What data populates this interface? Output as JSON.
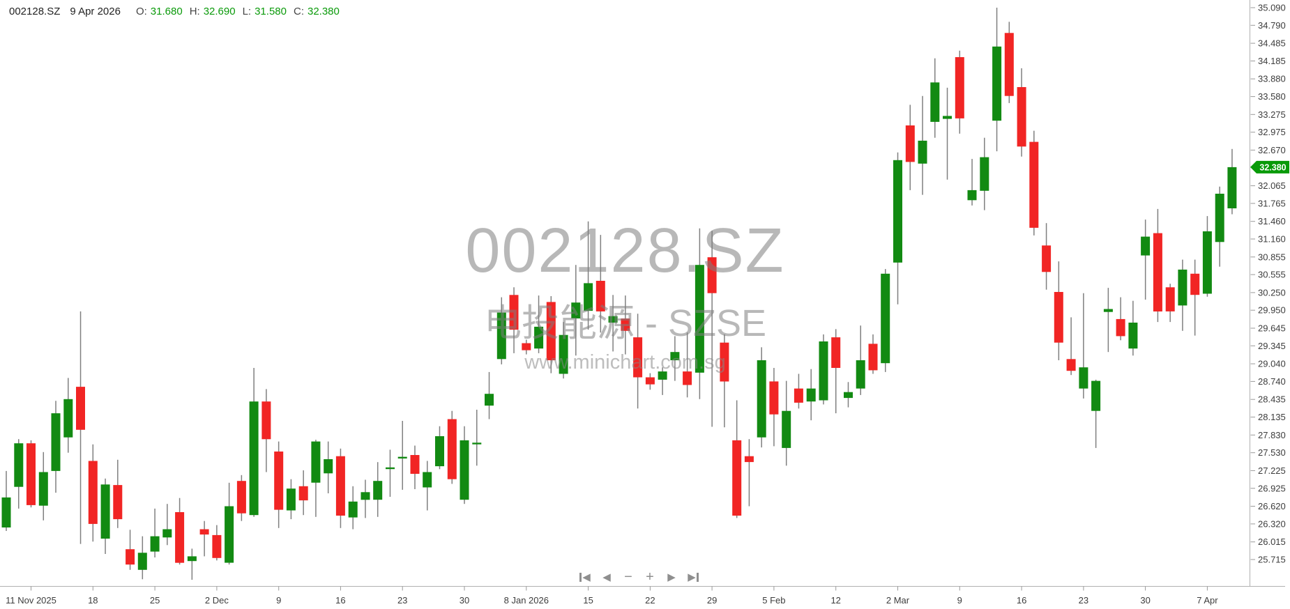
{
  "header": {
    "symbol": "002128.SZ",
    "date": "9 Apr 2026",
    "o_label": "O:",
    "open": "31.680",
    "h_label": "H:",
    "high": "32.690",
    "l_label": "L:",
    "low": "31.580",
    "c_label": "C:",
    "close": "32.380"
  },
  "watermark": {
    "line1": "002128.SZ",
    "line2": "电投能源 - SZSE",
    "line3": "www.minichart.com.sg"
  },
  "nav": {
    "skip_start_glyph": "◀",
    "prev_glyph": "◀",
    "zoom_out_glyph": "−",
    "zoom_in_glyph": "+",
    "next_glyph": "▶",
    "skip_end_glyph": "▶"
  },
  "colors": {
    "up": "#128a12",
    "down": "#f12524",
    "wick": "#7f7f7f",
    "axis_line": "#b0b0b0",
    "tick_mark": "#999999",
    "tick_text": "#3c3c3c",
    "tag_bg": "#089a08",
    "tag_text": "#ffffff"
  },
  "chart_data": {
    "type": "candlestick",
    "symbol": "002128.SZ",
    "company": "电投能源",
    "exchange": "SZSE",
    "title": "002128.SZ daily candlestick chart",
    "grid": false,
    "legend": "none",
    "y_axis_side": "right",
    "y_axis_labels": [
      "35.090",
      "34.790",
      "34.485",
      "34.185",
      "33.880",
      "33.580",
      "33.275",
      "32.975",
      "32.670",
      "32.065",
      "31.765",
      "31.460",
      "31.160",
      "30.855",
      "30.555",
      "30.250",
      "29.950",
      "29.645",
      "29.345",
      "29.040",
      "28.740",
      "28.435",
      "28.135",
      "27.830",
      "27.530",
      "27.225",
      "26.925",
      "26.620",
      "26.320",
      "26.015",
      "25.715"
    ],
    "last_price_label": "32.380",
    "last_price": 32.38,
    "last_bar": {
      "date": "9 Apr 2026",
      "open": 31.68,
      "high": 32.69,
      "low": 31.58,
      "close": 32.38
    },
    "x_tick_labels": [
      "11 Nov 2025",
      "18",
      "25",
      "2 Dec",
      "9",
      "16",
      "23",
      "30",
      "8 Jan 2026",
      "15",
      "22",
      "29",
      "5 Feb",
      "12",
      "2 Mar",
      "9",
      "16",
      "23",
      "30",
      "7 Apr"
    ],
    "x_tick_candle_indices": [
      2,
      7,
      12,
      17,
      22,
      27,
      32,
      37,
      42,
      47,
      52,
      57,
      62,
      67,
      72,
      77,
      82,
      87,
      92,
      97
    ],
    "y_range_visible": [
      25.35,
      35.2
    ],
    "ohlc": [
      [
        26.26,
        27.22,
        26.2,
        26.77
      ],
      [
        26.95,
        27.76,
        26.58,
        27.69
      ],
      [
        27.69,
        27.74,
        26.6,
        26.64
      ],
      [
        26.63,
        27.54,
        26.38,
        27.2
      ],
      [
        27.22,
        28.41,
        26.85,
        28.2
      ],
      [
        27.79,
        28.8,
        27.53,
        28.44
      ],
      [
        28.65,
        29.93,
        25.98,
        27.92
      ],
      [
        27.39,
        27.67,
        26.02,
        26.32
      ],
      [
        26.07,
        27.09,
        25.81,
        26.99
      ],
      [
        26.98,
        27.41,
        26.25,
        26.4
      ],
      [
        25.89,
        26.22,
        25.54,
        25.63
      ],
      [
        25.54,
        26.11,
        25.38,
        25.83
      ],
      [
        25.85,
        26.58,
        25.75,
        26.11
      ],
      [
        26.09,
        26.66,
        25.96,
        26.23
      ],
      [
        26.52,
        26.76,
        25.63,
        25.66
      ],
      [
        25.69,
        25.9,
        25.37,
        25.77
      ],
      [
        26.23,
        26.37,
        25.77,
        26.14
      ],
      [
        26.13,
        26.3,
        25.7,
        25.74
      ],
      [
        25.66,
        27.02,
        25.63,
        26.62
      ],
      [
        27.05,
        27.15,
        26.37,
        26.5
      ],
      [
        26.47,
        28.97,
        26.44,
        28.4
      ],
      [
        28.4,
        28.61,
        27.2,
        27.76
      ],
      [
        27.55,
        27.72,
        26.25,
        26.56
      ],
      [
        26.55,
        27.08,
        26.4,
        26.92
      ],
      [
        26.96,
        27.23,
        26.47,
        26.72
      ],
      [
        27.02,
        27.75,
        26.44,
        27.72
      ],
      [
        27.18,
        27.72,
        26.84,
        27.42
      ],
      [
        27.47,
        27.6,
        26.25,
        26.46
      ],
      [
        26.43,
        26.96,
        26.23,
        26.7
      ],
      [
        26.73,
        27.07,
        26.42,
        26.86
      ],
      [
        26.73,
        27.37,
        26.44,
        27.05
      ],
      [
        27.27,
        27.58,
        26.78,
        27.28
      ],
      [
        27.45,
        28.07,
        26.9,
        27.46
      ],
      [
        27.49,
        27.65,
        26.91,
        27.17
      ],
      [
        26.94,
        27.39,
        26.55,
        27.2
      ],
      [
        27.3,
        27.98,
        27.25,
        27.81
      ],
      [
        28.1,
        28.24,
        27.0,
        27.08
      ],
      [
        26.73,
        27.98,
        26.66,
        27.74
      ],
      [
        27.69,
        28.26,
        27.31,
        27.7
      ],
      [
        28.33,
        28.9,
        28.1,
        28.53
      ],
      [
        29.12,
        30.17,
        29.03,
        29.91
      ],
      [
        30.21,
        30.34,
        29.22,
        29.62
      ],
      [
        29.39,
        29.45,
        29.2,
        29.27
      ],
      [
        29.3,
        30.2,
        29.22,
        29.67
      ],
      [
        30.09,
        30.19,
        28.88,
        29.1
      ],
      [
        28.87,
        29.75,
        28.79,
        29.53
      ],
      [
        29.81,
        30.72,
        29.18,
        30.08
      ],
      [
        29.94,
        31.46,
        29.62,
        30.41
      ],
      [
        30.45,
        31.23,
        29.57,
        29.93
      ],
      [
        29.74,
        30.21,
        29.25,
        29.85
      ],
      [
        29.81,
        30.2,
        29.2,
        29.6
      ],
      [
        29.49,
        29.89,
        28.28,
        28.81
      ],
      [
        28.81,
        28.88,
        28.6,
        28.69
      ],
      [
        28.77,
        28.98,
        28.51,
        28.91
      ],
      [
        29.1,
        29.51,
        28.75,
        29.24
      ],
      [
        28.91,
        29.57,
        28.47,
        28.68
      ],
      [
        28.89,
        31.34,
        28.44,
        30.72
      ],
      [
        30.85,
        31.3,
        27.97,
        30.24
      ],
      [
        29.4,
        29.54,
        27.96,
        28.74
      ],
      [
        27.74,
        28.42,
        26.42,
        26.46
      ],
      [
        27.47,
        27.76,
        26.62,
        27.37
      ],
      [
        27.79,
        29.32,
        27.62,
        29.1
      ],
      [
        28.74,
        28.97,
        27.64,
        28.18
      ],
      [
        27.61,
        28.75,
        27.31,
        28.24
      ],
      [
        28.62,
        28.87,
        28.28,
        28.38
      ],
      [
        28.4,
        28.95,
        28.08,
        28.62
      ],
      [
        28.42,
        29.54,
        28.35,
        29.42
      ],
      [
        29.49,
        29.63,
        28.2,
        28.97
      ],
      [
        28.46,
        28.73,
        28.3,
        28.56
      ],
      [
        28.62,
        29.69,
        28.51,
        29.1
      ],
      [
        29.38,
        29.54,
        28.87,
        28.93
      ],
      [
        29.05,
        30.65,
        28.9,
        30.57
      ],
      [
        30.76,
        32.63,
        30.05,
        32.5
      ],
      [
        33.09,
        33.44,
        31.99,
        32.47
      ],
      [
        32.44,
        33.59,
        31.91,
        32.83
      ],
      [
        33.15,
        34.23,
        32.88,
        33.82
      ],
      [
        33.2,
        33.73,
        32.17,
        33.25
      ],
      [
        34.25,
        34.36,
        32.95,
        33.21
      ],
      [
        31.82,
        32.52,
        31.73,
        31.99
      ],
      [
        31.98,
        32.88,
        31.65,
        32.55
      ],
      [
        33.17,
        35.09,
        32.65,
        34.43
      ],
      [
        34.66,
        34.85,
        33.47,
        33.59
      ],
      [
        33.74,
        34.06,
        32.56,
        32.73
      ],
      [
        32.81,
        33.0,
        31.22,
        31.35
      ],
      [
        31.05,
        31.43,
        30.3,
        30.6
      ],
      [
        30.26,
        30.78,
        29.1,
        29.4
      ],
      [
        29.12,
        29.83,
        28.85,
        28.92
      ],
      [
        28.62,
        30.24,
        28.45,
        28.98
      ],
      [
        28.24,
        28.77,
        27.61,
        28.75
      ],
      [
        29.92,
        30.33,
        29.24,
        29.97
      ],
      [
        29.8,
        30.17,
        29.44,
        29.51
      ],
      [
        29.3,
        30.11,
        29.18,
        29.74
      ],
      [
        30.88,
        31.49,
        30.13,
        31.2
      ],
      [
        31.26,
        31.67,
        29.75,
        29.93
      ],
      [
        30.34,
        30.4,
        29.75,
        29.93
      ],
      [
        30.03,
        30.81,
        29.6,
        30.64
      ],
      [
        30.57,
        30.81,
        29.52,
        30.21
      ],
      [
        30.23,
        31.55,
        30.18,
        31.29
      ],
      [
        31.11,
        32.05,
        30.69,
        31.93
      ],
      [
        31.68,
        32.69,
        31.58,
        32.38
      ]
    ]
  }
}
